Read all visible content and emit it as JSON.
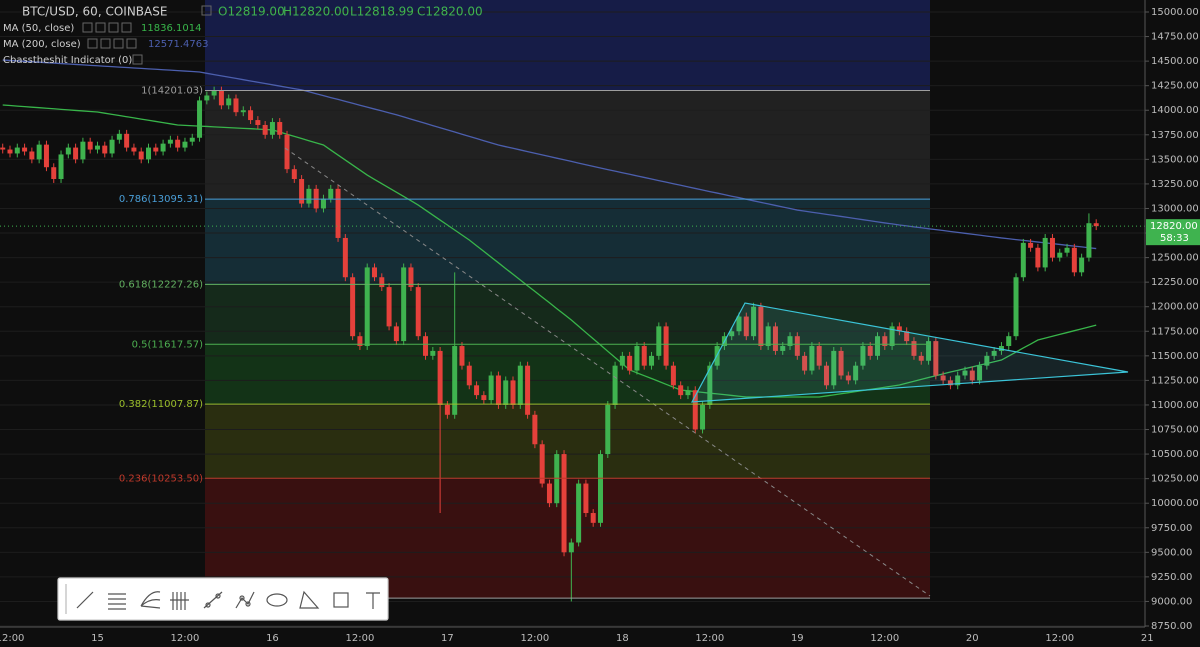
{
  "chart_data": {
    "type": "candlestick",
    "title": "BTC/USD, 60, COINBASE",
    "ohlc": [
      "O12819.00",
      "H12820.00",
      "L12818.99",
      "C12820.00"
    ],
    "indicator": "Cbasstheshit Indicator (0)",
    "categories": [
      null,
      "12:00",
      null,
      null,
      null,
      null,
      null,
      null,
      null,
      null,
      null,
      null,
      null,
      "15",
      null,
      null,
      null,
      null,
      null,
      null,
      null,
      null,
      null,
      null,
      null,
      "12:00",
      null,
      null,
      null,
      null,
      null,
      null,
      null,
      null,
      null,
      null,
      null,
      "16",
      null,
      null,
      null,
      null,
      null,
      null,
      null,
      null,
      null,
      null,
      null,
      "12:00",
      null,
      null,
      null,
      null,
      null,
      null,
      null,
      null,
      null,
      null,
      null,
      "17",
      null,
      null,
      null,
      null,
      null,
      null,
      null,
      null,
      null,
      null,
      null,
      "12:00",
      null,
      null,
      null,
      null,
      null,
      null,
      null,
      null,
      null,
      null,
      null,
      "18",
      null,
      null,
      null,
      null,
      null,
      null,
      null,
      null,
      null,
      null,
      null,
      "12:00",
      null,
      null,
      null,
      null,
      null,
      null,
      null,
      null,
      null,
      null,
      null,
      "19",
      null,
      null,
      null,
      null,
      null,
      null,
      null,
      null,
      null,
      null,
      null,
      "12:00",
      null,
      null,
      null,
      null,
      null,
      null,
      null,
      null,
      null,
      null,
      null,
      "20",
      null,
      null,
      null,
      null,
      null,
      null,
      null,
      null,
      null,
      null,
      null,
      "12:00",
      null,
      null,
      null,
      null,
      null,
      null,
      null,
      null,
      null,
      null,
      null,
      "21"
    ],
    "open": [
      13620,
      13600,
      13560,
      13620,
      13580,
      13500,
      13650,
      13420,
      13300,
      13550,
      13620,
      13500,
      13680,
      13600,
      13640,
      13560,
      13700,
      13760,
      13620,
      13580,
      13500,
      13620,
      13580,
      13660,
      13700,
      13620,
      13680,
      13720,
      14100,
      14150,
      14200,
      14050,
      14120,
      13980,
      14000,
      13900,
      13850,
      13750,
      13880,
      13750,
      13400,
      13300,
      13050,
      13200,
      13000,
      13100,
      13200,
      12700,
      12300,
      11700,
      11600,
      12400,
      12300,
      12200,
      11800,
      11650,
      12400,
      12200,
      11700,
      11500,
      11550,
      11000,
      10900,
      11600,
      11400,
      11200,
      11100,
      11050,
      11300,
      11000,
      11250,
      11000,
      11400,
      10900,
      10600,
      10200,
      10000,
      10500,
      9500,
      9600,
      10200,
      9900,
      9800,
      10500,
      11000,
      11400,
      11500,
      11350,
      11600,
      11400,
      11500,
      11800,
      11400,
      11200,
      11100,
      11150,
      10750,
      11000,
      11400,
      11600,
      11700,
      11750,
      11900,
      11700,
      12000,
      11600,
      11800,
      11550,
      11600,
      11700,
      11500,
      11350,
      11600,
      11400,
      11200,
      11550,
      11300,
      11250,
      11400,
      11600,
      11500,
      11700,
      11600,
      11800,
      11750,
      11650,
      11500,
      11450,
      11650,
      11300,
      11250,
      11200,
      11300,
      11350,
      11250,
      11400,
      11500,
      11550,
      11600,
      11700,
      12300,
      12650,
      12600,
      12400,
      12700,
      12500,
      12550,
      12600,
      12350,
      12500,
      12850,
      null,
      null,
      null,
      null,
      null,
      null,
      null
    ],
    "high": [
      13660,
      13640,
      13660,
      13660,
      13620,
      13690,
      13690,
      13460,
      13590,
      13660,
      13660,
      13720,
      13720,
      13680,
      13680,
      13740,
      13800,
      13800,
      13660,
      13620,
      13660,
      13660,
      13700,
      13740,
      13740,
      13720,
      13760,
      14140,
      14190,
      14240,
      14240,
      14160,
      14160,
      14040,
      14040,
      13940,
      13890,
      13920,
      13920,
      13790,
      13440,
      13340,
      13240,
      13240,
      13140,
      13240,
      13240,
      12740,
      12340,
      11740,
      12440,
      12440,
      12340,
      12240,
      11840,
      12440,
      12440,
      12240,
      11740,
      11590,
      11590,
      11040,
      12350,
      11640,
      11440,
      11240,
      11140,
      11340,
      11340,
      11290,
      11290,
      11440,
      11440,
      10940,
      10640,
      10240,
      10540,
      10540,
      9640,
      10240,
      10240,
      9940,
      10540,
      11040,
      11440,
      11540,
      11540,
      11640,
      11640,
      11540,
      11840,
      11840,
      11440,
      11240,
      11190,
      11190,
      11040,
      11440,
      11640,
      11740,
      11790,
      11940,
      11940,
      12040,
      12040,
      11840,
      11840,
      11640,
      11740,
      11740,
      11540,
      11640,
      11640,
      11440,
      11590,
      11590,
      11340,
      11440,
      11640,
      11640,
      11740,
      11740,
      11840,
      11840,
      11790,
      11690,
      11540,
      11690,
      11690,
      11340,
      11290,
      11340,
      11390,
      11390,
      11440,
      11540,
      11590,
      11640,
      11740,
      12340,
      12690,
      12690,
      12640,
      12740,
      12740,
      12590,
      12640,
      12640,
      12540,
      12950,
      12890,
      null,
      null,
      null,
      null,
      null,
      null,
      null
    ],
    "low": [
      13560,
      13520,
      13520,
      13540,
      13460,
      13460,
      13380,
      13260,
      13260,
      13510,
      13460,
      13460,
      13560,
      13560,
      13520,
      13520,
      13660,
      13580,
      13540,
      13460,
      13460,
      13540,
      13540,
      13620,
      13580,
      13580,
      13640,
      13680,
      14060,
      14110,
      14010,
      14010,
      13940,
      13940,
      13860,
      13810,
      13710,
      13710,
      13710,
      13360,
      13260,
      13010,
      13010,
      12960,
      12960,
      13060,
      12660,
      12260,
      11660,
      11560,
      11560,
      12260,
      12160,
      11760,
      11610,
      11610,
      12160,
      11660,
      11460,
      11460,
      9900,
      10860,
      10860,
      11360,
      11160,
      11060,
      11010,
      11010,
      10960,
      10960,
      10960,
      10960,
      10860,
      10560,
      10160,
      9960,
      9960,
      9460,
      9000,
      9560,
      9860,
      9760,
      9760,
      10460,
      10960,
      11360,
      11310,
      11310,
      11360,
      11360,
      11460,
      11360,
      11160,
      11060,
      11060,
      10710,
      10710,
      10960,
      11360,
      11560,
      11660,
      11710,
      11660,
      11660,
      11560,
      11560,
      11510,
      11510,
      11560,
      11460,
      11310,
      11310,
      11360,
      11160,
      11160,
      11260,
      11210,
      11210,
      11360,
      11460,
      11460,
      11560,
      11560,
      11710,
      11610,
      11460,
      11410,
      11410,
      11260,
      11210,
      11160,
      11160,
      11260,
      11210,
      11210,
      11360,
      11460,
      11510,
      11560,
      11660,
      12260,
      12560,
      12360,
      12360,
      12460,
      12460,
      12510,
      12310,
      12310,
      12460,
      12780,
      null,
      null,
      null,
      null,
      null,
      null,
      null
    ],
    "close": [
      13600,
      13560,
      13620,
      13580,
      13500,
      13650,
      13420,
      13300,
      13550,
      13620,
      13500,
      13680,
      13600,
      13640,
      13560,
      13700,
      13760,
      13620,
      13580,
      13500,
      13620,
      13580,
      13660,
      13700,
      13620,
      13680,
      13720,
      14100,
      14150,
      14200,
      14050,
      14120,
      13980,
      14000,
      13900,
      13850,
      13750,
      13880,
      13750,
      13400,
      13300,
      13050,
      13200,
      13000,
      13100,
      13200,
      12700,
      12300,
      11700,
      11600,
      12400,
      12300,
      12200,
      11800,
      11650,
      12400,
      12200,
      11700,
      11500,
      11550,
      11000,
      10900,
      11600,
      11400,
      11200,
      11100,
      11050,
      11300,
      11000,
      11250,
      11000,
      11400,
      10900,
      10600,
      10200,
      10000,
      10500,
      9500,
      9600,
      10200,
      9900,
      9800,
      10500,
      11000,
      11400,
      11500,
      11350,
      11600,
      11400,
      11500,
      11800,
      11400,
      11200,
      11100,
      11150,
      10750,
      11000,
      11400,
      11600,
      11700,
      11750,
      11900,
      11700,
      12000,
      11600,
      11800,
      11550,
      11600,
      11700,
      11500,
      11350,
      11600,
      11400,
      11200,
      11550,
      11300,
      11250,
      11400,
      11600,
      11500,
      11700,
      11600,
      11800,
      11750,
      11650,
      11500,
      11450,
      11650,
      11300,
      11250,
      11200,
      11300,
      11350,
      11250,
      11400,
      11500,
      11550,
      11600,
      11700,
      12300,
      12650,
      12600,
      12400,
      12700,
      12500,
      12550,
      12600,
      12350,
      12500,
      12850,
      12820,
      null,
      null,
      null,
      null,
      null,
      null,
      null
    ],
    "up_color": "#3fb34f",
    "down_color": "#e5413b",
    "series": [
      {
        "name": "MA (50, close)",
        "color": "#38b54a",
        "last_value": 11836.1014,
        "values": [
          14053,
          14048,
          14042,
          14037,
          14031,
          14026,
          14020,
          14015,
          14009,
          14004,
          13998,
          13993,
          13987,
          13982,
          13970,
          13958,
          13946,
          13934,
          13922,
          13910,
          13898,
          13886,
          13874,
          13862,
          13850,
          13846,
          13842,
          13838,
          13835,
          13831,
          13827,
          13823,
          13819,
          13815,
          13812,
          13808,
          13804,
          13800,
          13778,
          13756,
          13734,
          13712,
          13690,
          13668,
          13646,
          13595,
          13544,
          13493,
          13442,
          13391,
          13340,
          13296,
          13253,
          13209,
          13166,
          13122,
          13079,
          13035,
          12984,
          12933,
          12882,
          12832,
          12781,
          12730,
          12679,
          12621,
          12563,
          12505,
          12447,
          12388,
          12330,
          12272,
          12214,
          12156,
          12098,
          12040,
          11981,
          11923,
          11865,
          11801,
          11737,
          11674,
          11610,
          11546,
          11483,
          11419,
          11356,
          11327,
          11298,
          11269,
          11240,
          11210,
          11181,
          11152,
          11144,
          11136,
          11128,
          11120,
          11113,
          11105,
          11097,
          11089,
          11081,
          11081,
          11081,
          11081,
          11081,
          11081,
          11081,
          11081,
          11081,
          11081,
          11081,
          11092,
          11103,
          11114,
          11125,
          11136,
          11147,
          11158,
          11169,
          11180,
          11192,
          11203,
          11222,
          11241,
          11260,
          11279,
          11297,
          11316,
          11335,
          11352,
          11370,
          11387,
          11405,
          11422,
          11440,
          11457,
          11498,
          11539,
          11580,
          11620,
          11661,
          11680,
          11699,
          11718,
          11737,
          11756,
          11775,
          11794,
          11813,
          null,
          null,
          null,
          null,
          null,
          null,
          null
        ]
      },
      {
        "name": "MA (200, close)",
        "color": "#4c5fae",
        "last_value": 12571.4763,
        "values": [
          14511,
          14507,
          14502,
          14498,
          14493,
          14489,
          14484,
          14480,
          14475,
          14471,
          14466,
          14462,
          14457,
          14453,
          14448,
          14444,
          14439,
          14435,
          14430,
          14426,
          14421,
          14417,
          14412,
          14408,
          14403,
          14399,
          14394,
          14389,
          14376,
          14363,
          14350,
          14337,
          14324,
          14311,
          14298,
          14285,
          14272,
          14259,
          14246,
          14233,
          14220,
          14207,
          14188,
          14168,
          14149,
          14129,
          14110,
          14090,
          14071,
          14051,
          14032,
          14012,
          13993,
          13973,
          13954,
          13932,
          13910,
          13888,
          13866,
          13844,
          13822,
          13800,
          13778,
          13756,
          13734,
          13712,
          13690,
          13668,
          13646,
          13629,
          13613,
          13596,
          13579,
          13562,
          13546,
          13529,
          13512,
          13496,
          13479,
          13462,
          13445,
          13429,
          13412,
          13396,
          13380,
          13364,
          13348,
          13332,
          13316,
          13300,
          13284,
          13268,
          13252,
          13236,
          13220,
          13204,
          13188,
          13172,
          13157,
          13141,
          13125,
          13110,
          13094,
          13078,
          13062,
          13047,
          13031,
          13015,
          13000,
          12984,
          12973,
          12962,
          12951,
          12940,
          12930,
          12919,
          12908,
          12897,
          12886,
          12875,
          12864,
          12853,
          12843,
          12832,
          12823,
          12813,
          12804,
          12794,
          12785,
          12776,
          12766,
          12757,
          12747,
          12738,
          12729,
          12719,
          12710,
          12700,
          12692,
          12683,
          12675,
          12667,
          12658,
          12650,
          12642,
          12634,
          12625,
          12617,
          12609,
          12600,
          12592,
          null,
          null,
          null,
          null,
          null,
          null,
          null
        ]
      }
    ],
    "fib_levels": [
      {
        "label": "1(14201.03)",
        "price": 14201.03,
        "color": "#9e9e9e",
        "top_fill": "rgba(28,38,110,0.6)",
        "fill": "rgba(110,110,110,0.2)"
      },
      {
        "label": "0.786(13095.31)",
        "price": 13095.31,
        "color": "#4a9fd8",
        "fill": "rgba(40,120,150,0.3)"
      },
      {
        "label": "0.618(12227.26)",
        "price": 12227.26,
        "color": "#62b060",
        "fill": "rgba(40,110,60,0.3)"
      },
      {
        "label": "0.5(11617.57)",
        "price": 11617.57,
        "color": "#4caf50",
        "fill": "rgba(30,120,40,0.35)"
      },
      {
        "label": "0.382(11007.87)",
        "price": 11007.87,
        "color": "#9bbf2b",
        "fill": "rgba(90,100,20,0.38)"
      },
      {
        "label": "0.236(10253.50)",
        "price": 10253.5,
        "color": "#c0392b",
        "fill": "rgba(110,20,20,0.45)"
      },
      {
        "price": 9034.11,
        "color": "#9e9e9e"
      }
    ],
    "last_price": {
      "label": "12820.00",
      "value": 12820,
      "countdown": "58:33",
      "color": "#3fb34f"
    },
    "ylim": [
      8750,
      15000
    ],
    "yticks": [
      {
        "value": 8750,
        "label": "8750.00"
      },
      {
        "value": 9000,
        "label": "9000.00"
      },
      {
        "value": 9250,
        "label": "9250.00"
      },
      {
        "value": 9500,
        "label": "9500.00"
      },
      {
        "value": 9750,
        "label": "9750.00"
      },
      {
        "value": 10000,
        "label": "10000.00"
      },
      {
        "value": 10250,
        "label": "10250.00"
      },
      {
        "value": 10500,
        "label": "10500.00"
      },
      {
        "value": 10750,
        "label": "10750.00"
      },
      {
        "value": 11000,
        "label": "11000.00"
      },
      {
        "value": 11250,
        "label": "11250.00"
      },
      {
        "value": 11500,
        "label": "11500.00"
      },
      {
        "value": 11750,
        "label": "11750.00"
      },
      {
        "value": 12000,
        "label": "12000.00"
      },
      {
        "value": 12250,
        "label": "12250.00"
      },
      {
        "value": 12500,
        "label": "12500.00"
      },
      {
        "value": 12750,
        "label": "12750.00"
      },
      {
        "value": 13000,
        "label": "13000.00"
      },
      {
        "value": 13250,
        "label": "13250.00"
      },
      {
        "value": 13500,
        "label": "13500.00"
      },
      {
        "value": 13750,
        "label": "13750.00"
      },
      {
        "value": 14000,
        "label": "14000.00"
      },
      {
        "value": 14250,
        "label": "14250.00"
      },
      {
        "value": 14500,
        "label": "14500.00"
      },
      {
        "value": 14750,
        "label": "14750.00"
      },
      {
        "value": 15000,
        "label": "15000.00"
      }
    ],
    "grid": true
  }
}
